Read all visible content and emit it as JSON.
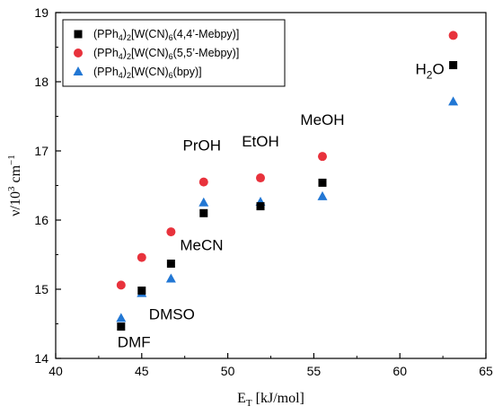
{
  "chart_data": {
    "type": "scatter",
    "title": "",
    "xlabel_main": "E",
    "xlabel_sub": "T",
    "xlabel_rest": " [kJ/mol]",
    "ylabel_main": "ν/10",
    "ylabel_sup": "3",
    "ylabel_unit": " cm",
    "ylabel_unit_sup": "−1",
    "xlim": [
      40,
      65
    ],
    "ylim": [
      14,
      19
    ],
    "xticks": [
      40,
      45,
      50,
      55,
      60,
      65
    ],
    "yticks": [
      14,
      15,
      16,
      17,
      18,
      19
    ],
    "legend_position": "top-left",
    "series": [
      {
        "name": "(PPh4)2[W(CN)6(4,4'-Mebpy)]",
        "legend": {
          "a": "(PPh",
          "b": "4",
          "c": ")",
          "d": "2",
          "e": "[W(CN)",
          "f": "6",
          "g": "(4,4’-Mebpy)]"
        },
        "marker": "square",
        "color": "#000000",
        "x": [
          43.8,
          45.0,
          46.7,
          48.6,
          51.9,
          55.5,
          63.1
        ],
        "y": [
          14.46,
          14.98,
          15.37,
          16.1,
          16.2,
          16.54,
          18.24
        ]
      },
      {
        "name": "(PPh4)2[W(CN)6(5,5'-Mebpy)]",
        "legend": {
          "a": "(PPh",
          "b": "4",
          "c": ")",
          "d": "2",
          "e": "[W(CN)",
          "f": "6",
          "g": "(5,5’-Mebpy)]"
        },
        "marker": "circle",
        "color": "#e8323c",
        "x": [
          43.8,
          45.0,
          46.7,
          48.6,
          51.9,
          55.5,
          63.1
        ],
        "y": [
          15.06,
          15.46,
          15.83,
          16.55,
          16.61,
          16.92,
          18.67
        ]
      },
      {
        "name": "(PPh4)2[W(CN)6(bpy)]",
        "legend": {
          "a": "(PPh",
          "b": "4",
          "c": ")",
          "d": "2",
          "e": "[W(CN)",
          "f": "6",
          "g": "(bpy)]"
        },
        "marker": "triangle",
        "color": "#2277d4",
        "x": [
          43.8,
          45.0,
          46.7,
          48.6,
          51.9,
          55.5,
          63.1
        ],
        "y": [
          14.58,
          14.94,
          15.15,
          16.25,
          16.26,
          16.34,
          17.71
        ]
      }
    ],
    "annotations": [
      {
        "text": "DMF",
        "x": 43.8,
        "y": 14.46
      },
      {
        "text": "DMSO",
        "x": 45.0,
        "y": 14.98
      },
      {
        "text": "MeCN",
        "x": 46.7,
        "y": 15.37
      },
      {
        "text": "PrOH",
        "x": 48.6,
        "y": 16.55
      },
      {
        "text": "EtOH",
        "x": 51.9,
        "y": 16.61
      },
      {
        "text": "MeOH",
        "x": 55.5,
        "y": 16.92
      },
      {
        "text_main": "H",
        "text_sub": "2",
        "text_rest": "O",
        "x": 63.1,
        "y": 18.24
      }
    ]
  }
}
